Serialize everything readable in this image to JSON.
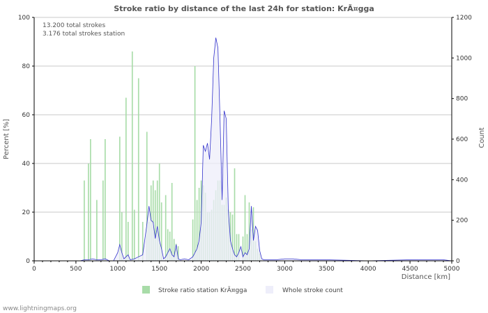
{
  "chart_data": {
    "type": "bar",
    "title": "Stroke ratio by distance of the last 24h for station: KrÃ¤gga",
    "info_lines": [
      "13.200 total strokes",
      "3.176 total strokes station"
    ],
    "xlabel": "Distance   [km]",
    "ylabel_left": "Percent   [%]",
    "ylabel_right": "Count",
    "xlim": [
      0,
      5000
    ],
    "ylim_left": [
      0,
      100
    ],
    "ylim_right": [
      0,
      1200
    ],
    "x_ticks": [
      0,
      500,
      1000,
      1500,
      2000,
      2500,
      3000,
      3500,
      4000,
      4500,
      5000
    ],
    "y_left_ticks": [
      0,
      20,
      40,
      60,
      80,
      100
    ],
    "y_right_ticks": [
      0,
      200,
      400,
      600,
      800,
      1000,
      1200
    ],
    "grid": true,
    "legend_position": "bottom",
    "series": [
      {
        "name": "Stroke ratio station KrÃ¤gga",
        "type": "bar",
        "axis": "left",
        "color": "#a8dca8",
        "bin_width_km": 25,
        "x": [
          600,
          650,
          675,
          750,
          825,
          850,
          1025,
          1050,
          1100,
          1125,
          1175,
          1200,
          1250,
          1300,
          1350,
          1375,
          1400,
          1425,
          1450,
          1475,
          1500,
          1525,
          1575,
          1600,
          1625,
          1650,
          1675,
          1700,
          1725,
          1900,
          1925,
          1950,
          1975,
          2000,
          2025,
          2050,
          2075,
          2100,
          2125,
          2150,
          2175,
          2200,
          2225,
          2250,
          2275,
          2300,
          2325,
          2350,
          2375,
          2400,
          2425,
          2450,
          2500,
          2525,
          2550,
          2575,
          2600,
          2625,
          2650,
          2675,
          2700
        ],
        "values": [
          33,
          40,
          50,
          25,
          33,
          50,
          51,
          20,
          67,
          16,
          86,
          21,
          75,
          16,
          53,
          16,
          31,
          33,
          29,
          33,
          40,
          24,
          27,
          13,
          12,
          32,
          9,
          7,
          6,
          17,
          80,
          25,
          30,
          33,
          31,
          28,
          20,
          20,
          21,
          25,
          29,
          33,
          33,
          23,
          23,
          26,
          21,
          20,
          19,
          38,
          11,
          11,
          10,
          27,
          11,
          24,
          13,
          22,
          8,
          5,
          3
        ]
      },
      {
        "name": "Whole stroke count",
        "type": "area",
        "axis": "right",
        "color": "#3333cc",
        "fill": "#eeeefa",
        "x": [
          0,
          100,
          200,
          300,
          400,
          500,
          550,
          600,
          650,
          700,
          750,
          800,
          850,
          900,
          950,
          1000,
          1025,
          1050,
          1075,
          1100,
          1125,
          1150,
          1200,
          1250,
          1300,
          1350,
          1375,
          1400,
          1425,
          1450,
          1475,
          1500,
          1525,
          1550,
          1575,
          1600,
          1625,
          1650,
          1675,
          1700,
          1725,
          1750,
          1800,
          1850,
          1900,
          1950,
          1975,
          2000,
          2025,
          2050,
          2075,
          2100,
          2125,
          2150,
          2175,
          2200,
          2225,
          2250,
          2275,
          2300,
          2325,
          2350,
          2375,
          2400,
          2425,
          2450,
          2475,
          2500,
          2525,
          2550,
          2575,
          2600,
          2625,
          2650,
          2675,
          2700,
          2725,
          2750,
          2800,
          2850,
          2900,
          3000,
          3100,
          3200,
          3500,
          4000,
          4500,
          4800,
          4900,
          5000
        ],
        "values": [
          0,
          0,
          0,
          0,
          0,
          0,
          0,
          5,
          5,
          10,
          5,
          5,
          10,
          0,
          0,
          40,
          80,
          40,
          10,
          20,
          30,
          5,
          10,
          20,
          30,
          180,
          270,
          200,
          190,
          110,
          170,
          100,
          60,
          10,
          20,
          40,
          60,
          30,
          20,
          80,
          10,
          5,
          10,
          5,
          20,
          60,
          100,
          190,
          570,
          540,
          580,
          500,
          700,
          1000,
          1100,
          1050,
          700,
          300,
          740,
          700,
          250,
          100,
          60,
          30,
          20,
          40,
          70,
          20,
          40,
          30,
          60,
          270,
          100,
          170,
          150,
          50,
          10,
          5,
          5,
          5,
          5,
          10,
          10,
          5,
          5,
          0,
          5,
          5,
          5,
          0
        ]
      }
    ]
  },
  "footer": "www.lightningmaps.org"
}
